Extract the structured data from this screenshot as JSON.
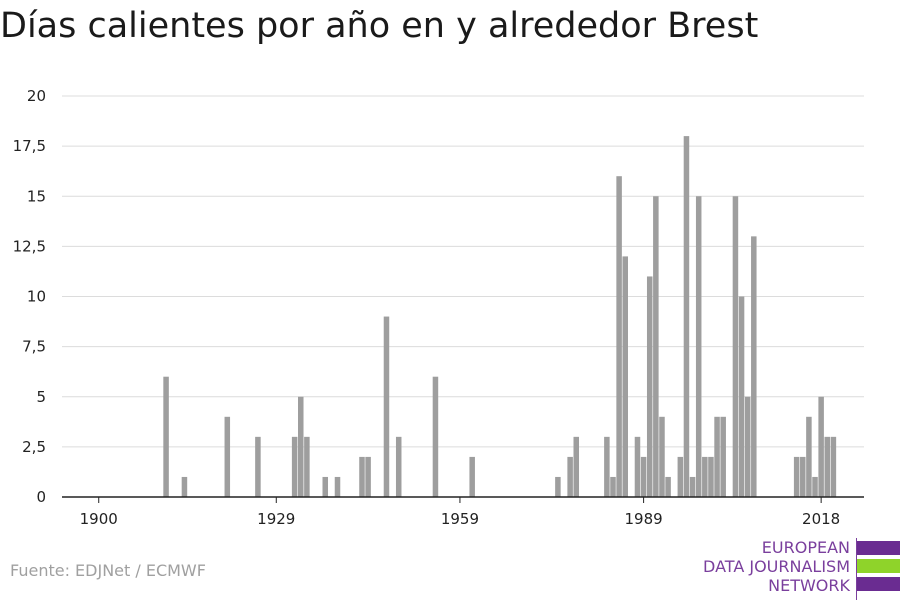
{
  "title": "Días calientes por año en y alrededor Brest",
  "source": "Fuente: EDJNet / ECMWF",
  "logo": {
    "lines": [
      "EUROPEAN",
      "DATA JOURNALISM",
      "NETWORK"
    ],
    "colors": [
      "#6a2c91",
      "#8fd32a",
      "#6a2c91"
    ]
  },
  "chart_data": {
    "type": "bar",
    "title": "Días calientes por año en y alrededor Brest",
    "xlabel": "",
    "ylabel": "",
    "bar_color": "#9e9e9e",
    "grid": true,
    "ylim": [
      0,
      20
    ],
    "yticks": [
      0,
      2.5,
      5,
      7.5,
      10,
      12.5,
      15,
      17.5,
      20
    ],
    "ytick_labels": [
      "0",
      "2,5",
      "5",
      "7,5",
      "10",
      "12,5",
      "15",
      "17,5",
      "20"
    ],
    "xlim": [
      1894,
      2025
    ],
    "xticks": [
      1900,
      1929,
      1959,
      1989,
      2018
    ],
    "x": [
      1911,
      1914,
      1921,
      1926,
      1932,
      1933,
      1934,
      1937,
      1939,
      1943,
      1944,
      1947,
      1949,
      1955,
      1961,
      1975,
      1977,
      1978,
      1983,
      1984,
      1985,
      1986,
      1988,
      1989,
      1990,
      1991,
      1992,
      1993,
      1995,
      1996,
      1997,
      1998,
      1999,
      2000,
      2001,
      2002,
      2004,
      2005,
      2006,
      2007,
      2014,
      2015,
      2016,
      2017,
      2018,
      2019,
      2020
    ],
    "values": [
      6,
      1,
      4,
      3,
      3,
      5,
      3,
      1,
      1,
      2,
      2,
      9,
      3,
      6,
      2,
      1,
      2,
      3,
      3,
      1,
      16,
      12,
      3,
      2,
      11,
      15,
      4,
      1,
      2,
      18,
      1,
      15,
      2,
      2,
      4,
      4,
      15,
      10,
      5,
      13,
      2,
      2,
      4,
      1,
      5,
      3,
      3
    ]
  }
}
